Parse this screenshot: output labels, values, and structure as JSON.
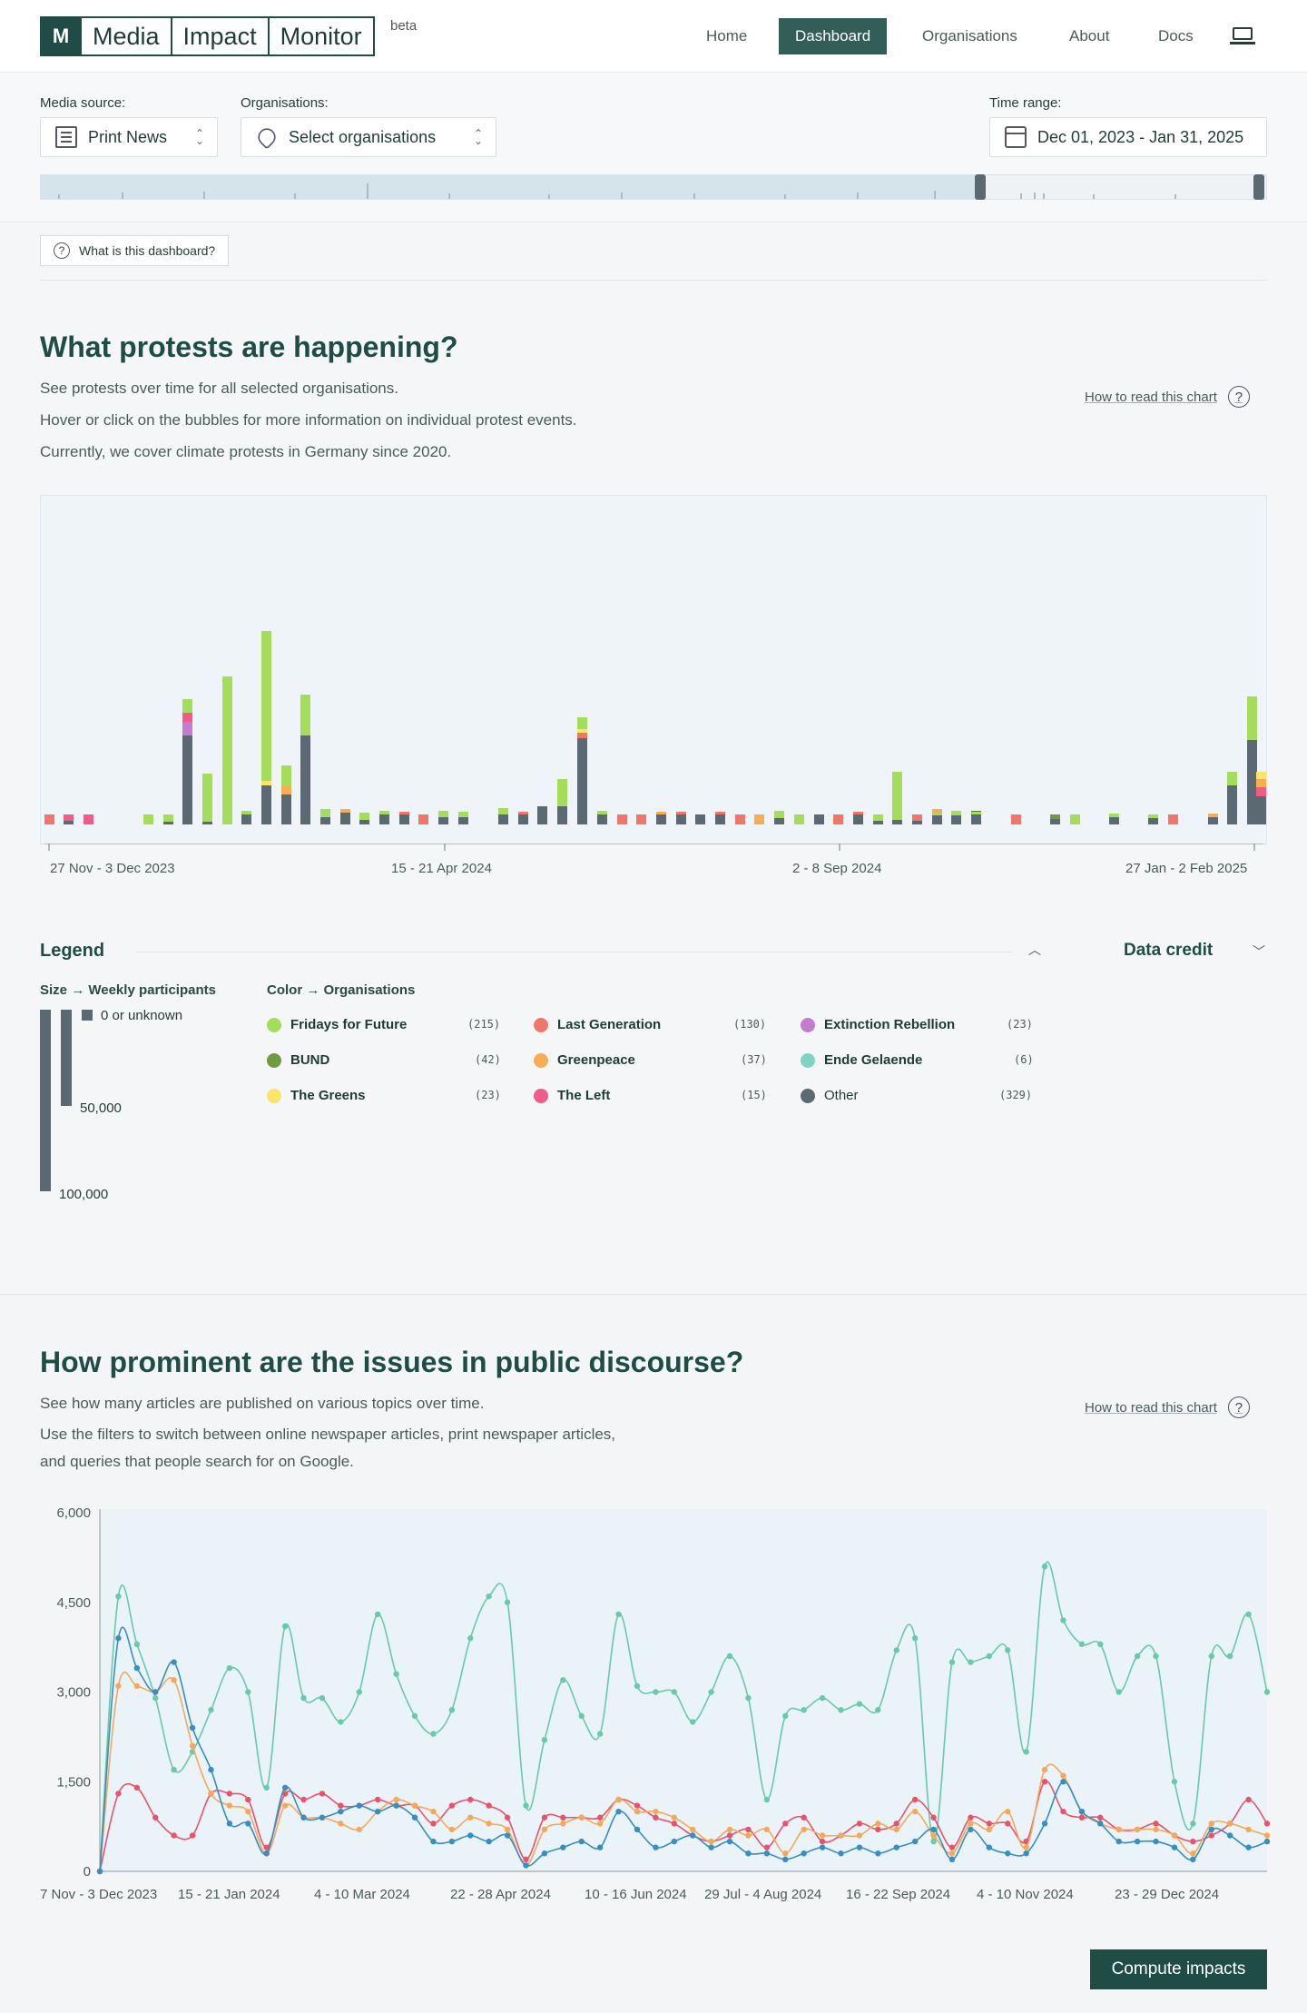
{
  "nav": {
    "logo_mark": "M",
    "logo_words": [
      "Media",
      "Impact",
      "Monitor"
    ],
    "beta": "beta",
    "items": [
      {
        "label": "Home",
        "active": false
      },
      {
        "label": "Dashboard",
        "active": true
      },
      {
        "label": "Organisations",
        "active": false
      },
      {
        "label": "About",
        "active": false
      },
      {
        "label": "Docs",
        "active": false
      }
    ],
    "icons": [
      "laptop-icon"
    ]
  },
  "filters": {
    "media_label": "Media source:",
    "media_value": "Print News",
    "orgs_label": "Organisations:",
    "orgs_value": "Select organisations",
    "time_label": "Time range:",
    "time_value": "Dec 01, 2023 - Jan 31, 2025",
    "icons": [
      "newspaper-icon",
      "heart-icon",
      "calendar-icon",
      "chevron-updown-icon"
    ]
  },
  "help_button": "What is this dashboard?",
  "protests": {
    "title": "What protests are happening?",
    "lines": [
      "See protests over time for all selected organisations.",
      "Hover or click on the bubbles for more information on individual protest events.",
      "Currently, we cover climate protests in Germany since 2020."
    ],
    "howto": "How to read this chart"
  },
  "legend": {
    "title": "Legend",
    "credit": "Data credit",
    "size_title": "Size",
    "size_arrow": "→",
    "size_sub": "Weekly participants",
    "size_labels": [
      "0 or unknown",
      "50,000",
      "100,000"
    ],
    "color_title": "Color",
    "color_arrow": "→",
    "color_sub": "Organisations",
    "orgs": [
      {
        "name": "Fridays for Future",
        "count": "(215)",
        "color": "#a4dc5c"
      },
      {
        "name": "Last Generation",
        "count": "(130)",
        "color": "#f0766a"
      },
      {
        "name": "Extinction Rebellion",
        "count": "(23)",
        "color": "#c47bd0"
      },
      {
        "name": "BUND",
        "count": "(42)",
        "color": "#6f9a3f"
      },
      {
        "name": "Greenpeace",
        "count": "(37)",
        "color": "#f7ad52"
      },
      {
        "name": "Ende Gelaende",
        "count": "(6)",
        "color": "#7fd4c3"
      },
      {
        "name": "The Greens",
        "count": "(23)",
        "color": "#fbe46a"
      },
      {
        "name": "The Left",
        "count": "(15)",
        "color": "#ef5c8a"
      },
      {
        "name": "Other",
        "count": "(329)",
        "color": "#5b6a72"
      }
    ]
  },
  "protest_chart": {
    "ticks": [
      "27 Nov - 3 Dec 2023",
      "15 - 21 Apr 2024",
      "2 - 8 Sep 2024",
      "27 Jan - 2 Feb 2025"
    ]
  },
  "discourse": {
    "title": "How prominent are the issues in public discourse?",
    "lines": [
      "See how many articles are published on various topics over time.",
      "Use the filters to switch between online newspaper articles, print newspaper articles,",
      "and queries that people search for on Google."
    ],
    "howto": "How to read this chart"
  },
  "chart_data": {
    "type": "line",
    "ylim": [
      0,
      6000
    ],
    "yticks": [
      "6,000",
      "4,500",
      "3,000",
      "1,500",
      "0"
    ],
    "xticks": [
      "7 Nov - 3 Dec 2023",
      "15 - 21 Jan 2024",
      "4 - 10 Mar 2024",
      "22 - 28 Apr 2024",
      "10 - 16 Jun 2024",
      "29 Jul - 4 Aug 2024",
      "16 - 22 Sep 2024",
      "4 - 10 Nov 2024",
      "23 - 29 Dec 2024"
    ],
    "series": [
      {
        "color": "#69c9a8",
        "values": [
          0,
          4600,
          3800,
          2900,
          1700,
          2000,
          2700,
          3400,
          3000,
          1400,
          4100,
          2900,
          2900,
          2500,
          3000,
          4300,
          3300,
          2600,
          2300,
          2700,
          3900,
          4600,
          4500,
          1100,
          2200,
          3200,
          2600,
          2300,
          4300,
          3100,
          3000,
          3000,
          2500,
          3000,
          3600,
          2900,
          1200,
          2600,
          2700,
          2900,
          2700,
          2800,
          2700,
          3700,
          3900,
          500,
          3500,
          3500,
          3600,
          3700,
          2000,
          5100,
          4200,
          3800,
          3800,
          3000,
          3600,
          3600,
          1500,
          800,
          3600,
          3600,
          4300,
          3000
        ]
      },
      {
        "color": "#e8526a",
        "values": [
          0,
          1300,
          1400,
          900,
          600,
          600,
          1300,
          1300,
          1200,
          400,
          1300,
          1200,
          1300,
          1100,
          1100,
          1200,
          1100,
          1100,
          800,
          1100,
          1200,
          1100,
          900,
          200,
          900,
          900,
          900,
          900,
          1200,
          1100,
          900,
          800,
          600,
          500,
          600,
          700,
          400,
          800,
          900,
          500,
          600,
          800,
          700,
          800,
          1200,
          900,
          400,
          900,
          800,
          800,
          500,
          1500,
          1000,
          900,
          900,
          700,
          700,
          800,
          600,
          500,
          600,
          800,
          1200,
          800
        ]
      },
      {
        "color": "#f4a85c",
        "values": [
          0,
          3100,
          3100,
          3000,
          3200,
          2100,
          1300,
          1100,
          1000,
          300,
          1100,
          900,
          900,
          800,
          700,
          1000,
          1200,
          1100,
          1000,
          700,
          900,
          800,
          700,
          100,
          700,
          800,
          900,
          800,
          1200,
          1000,
          1000,
          900,
          700,
          500,
          700,
          600,
          700,
          300,
          700,
          600,
          600,
          600,
          800,
          700,
          1000,
          600,
          300,
          800,
          700,
          1000,
          400,
          1700,
          1600,
          1000,
          800,
          700,
          700,
          700,
          600,
          300,
          800,
          800,
          700,
          600
        ]
      },
      {
        "color": "#3a8dbf",
        "values": [
          0,
          3900,
          3400,
          3000,
          3500,
          2400,
          1700,
          800,
          800,
          300,
          1400,
          900,
          900,
          1000,
          1100,
          1000,
          1100,
          900,
          500,
          500,
          600,
          500,
          600,
          100,
          300,
          400,
          500,
          400,
          1000,
          700,
          400,
          500,
          600,
          400,
          500,
          300,
          300,
          200,
          300,
          400,
          300,
          400,
          300,
          400,
          500,
          700,
          200,
          700,
          400,
          300,
          300,
          800,
          1500,
          1000,
          800,
          500,
          500,
          500,
          400,
          200,
          700,
          600,
          400,
          500
        ]
      }
    ]
  },
  "compute_button": "Compute impacts"
}
